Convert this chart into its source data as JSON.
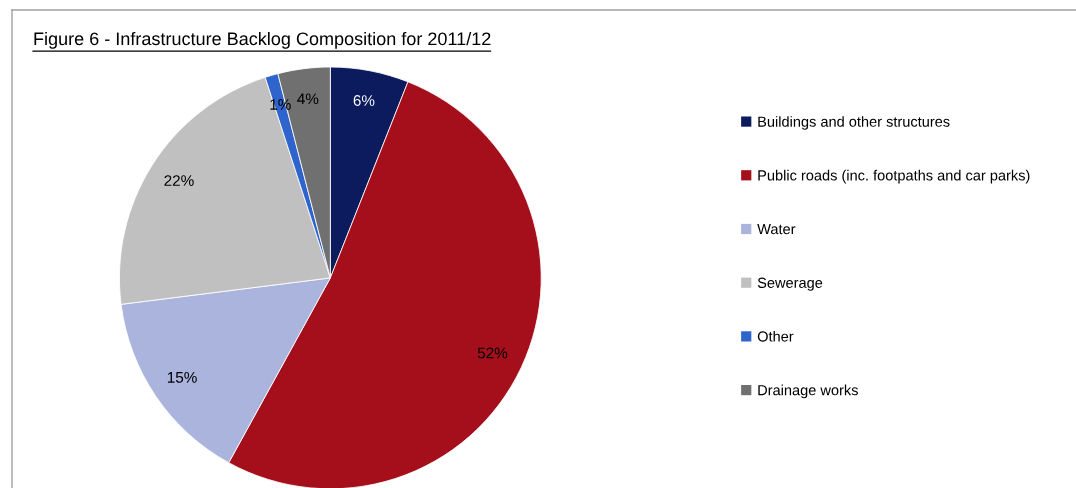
{
  "chart_data": {
    "type": "pie",
    "title": "Figure 6 - Infrastructure Backlog Composition for 2011/12",
    "categories": [
      "Buildings and other structures",
      "Public roads (inc. footpaths and car parks)",
      "Water",
      "Sewerage",
      "Other",
      "Drainage works"
    ],
    "values": [
      6,
      52,
      15,
      22,
      1,
      4
    ],
    "colors": [
      "#0c1a5e",
      "#a50f1b",
      "#aab4dd",
      "#c0c0c0",
      "#2e64cc",
      "#707070"
    ],
    "value_labels": [
      "6%",
      "52%",
      "15%",
      "22%",
      "1%",
      "4%"
    ],
    "legend": "right"
  }
}
